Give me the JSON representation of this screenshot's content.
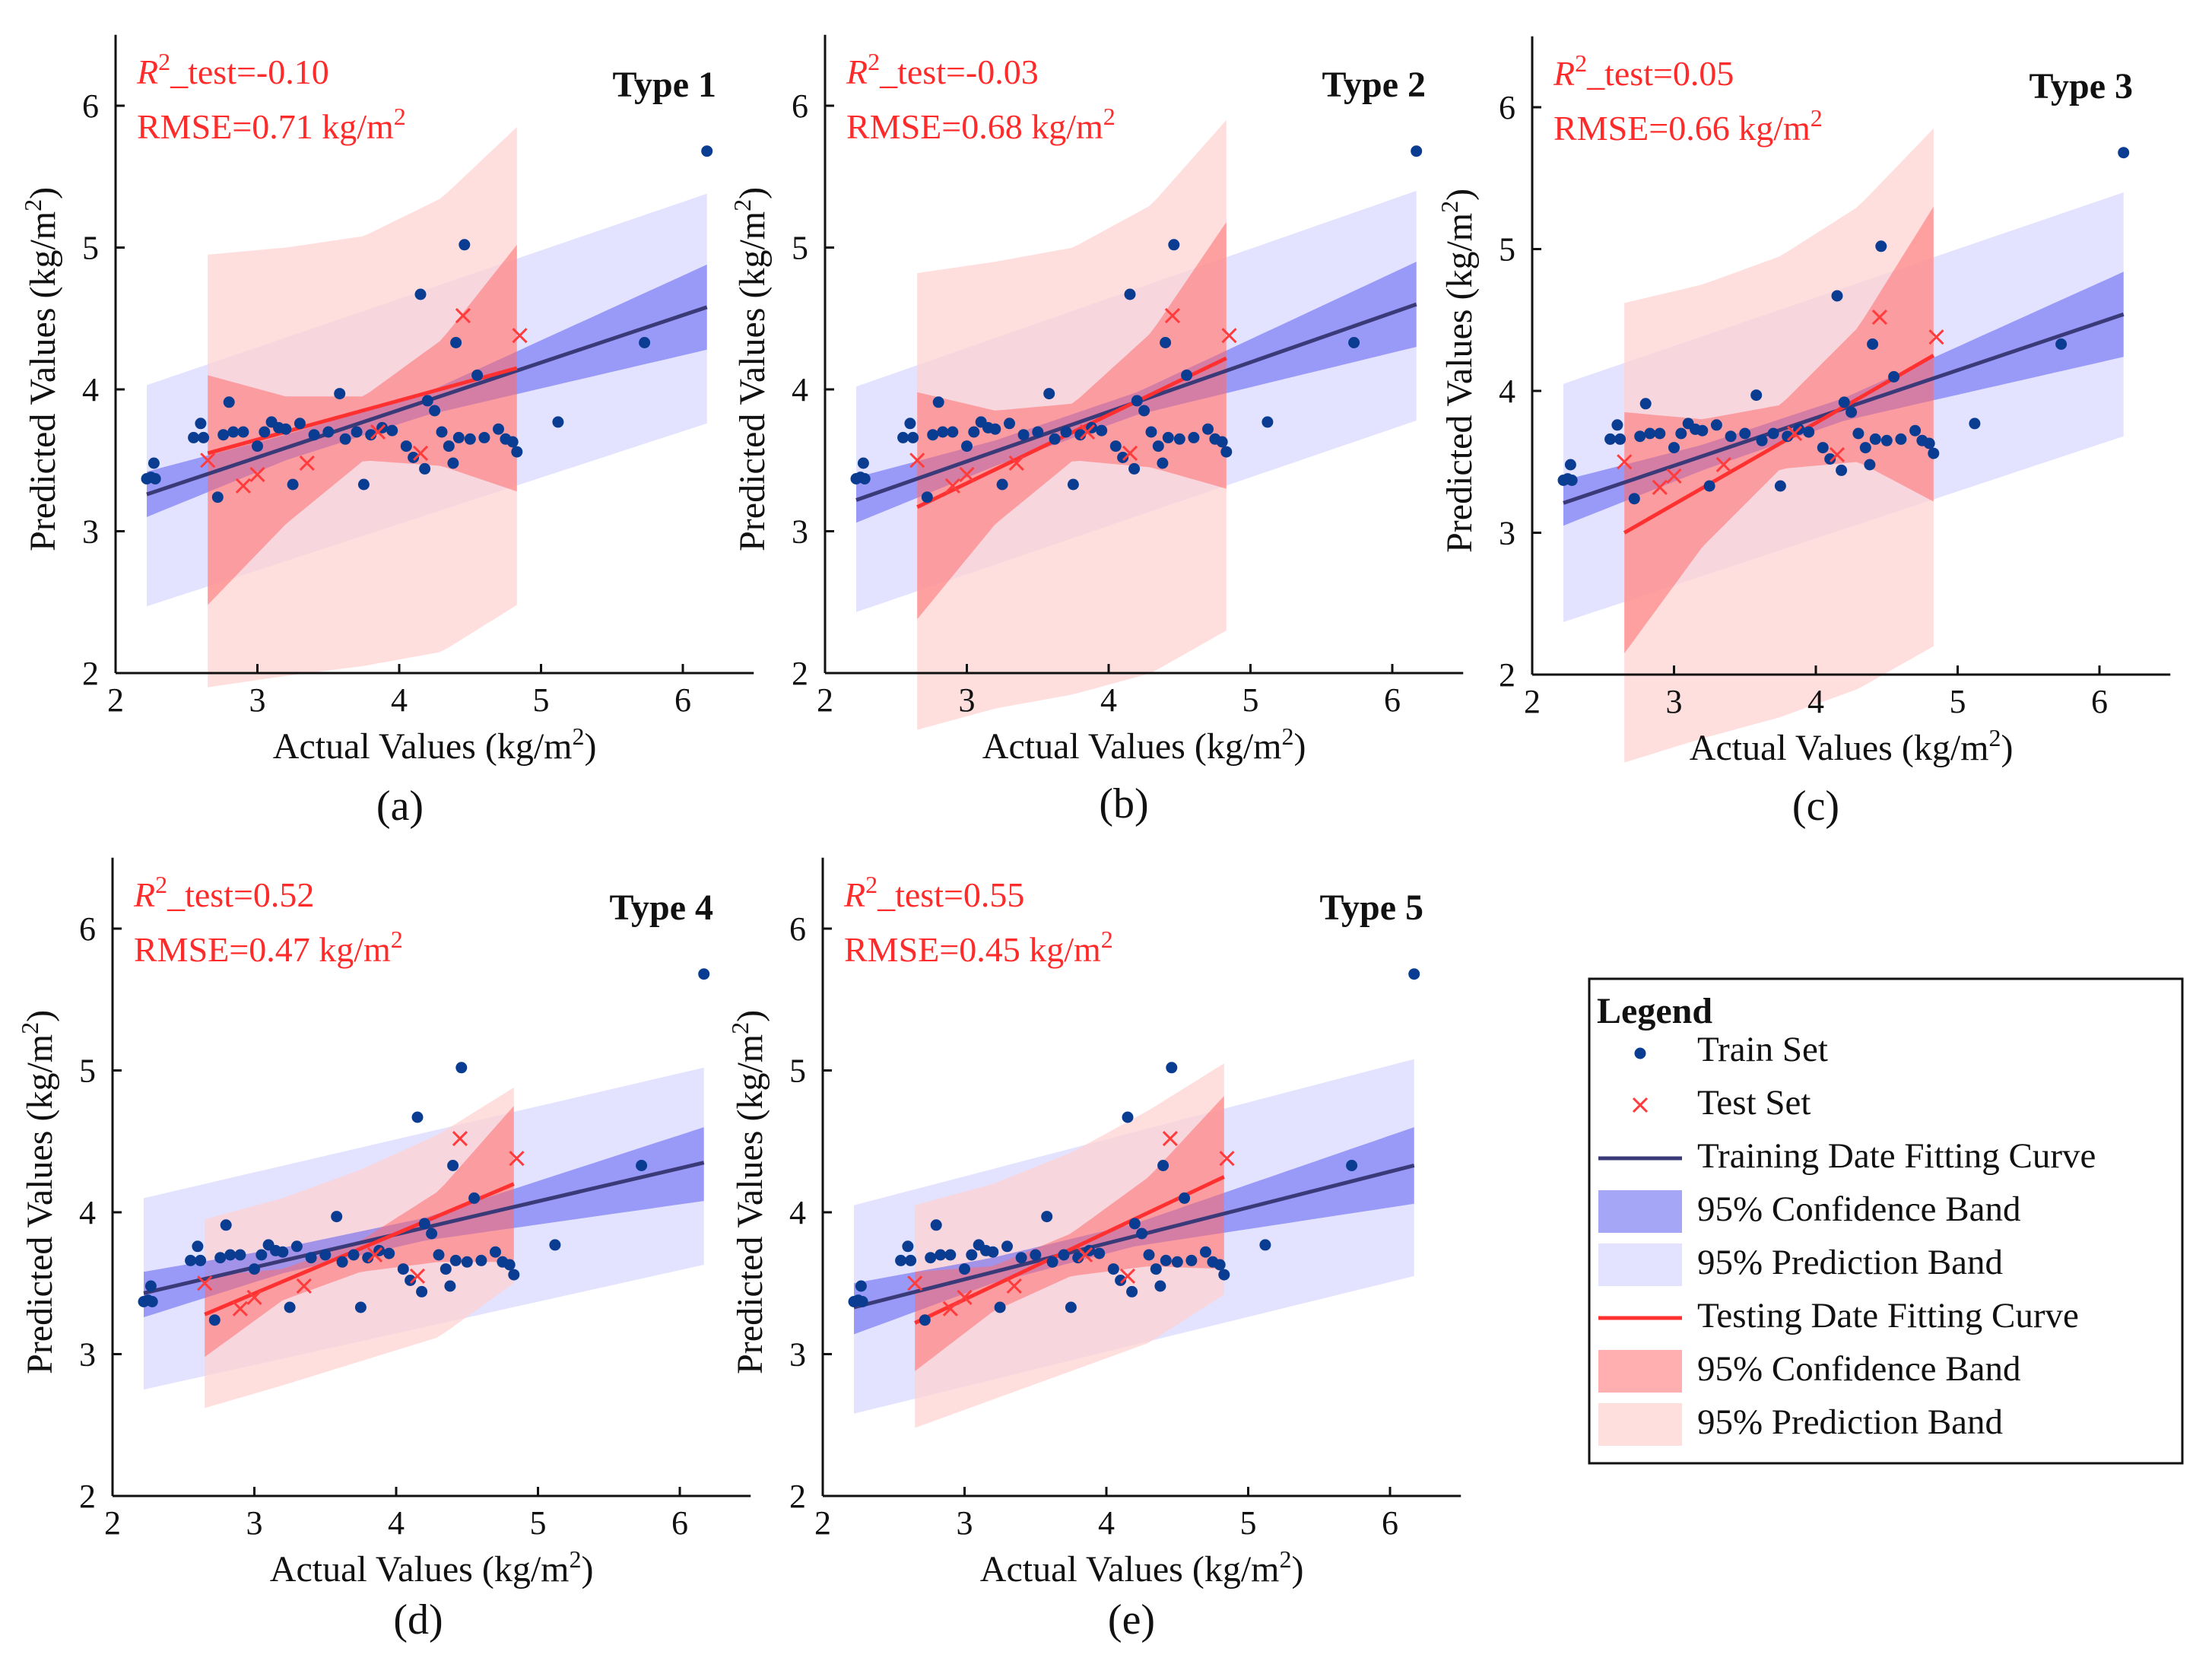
{
  "figure": {
    "background": "#ffffff"
  },
  "colors": {
    "train_point": "#0a3d91",
    "test_point": "#ff3b3b",
    "train_line": "#3a3a78",
    "test_line": "#ff3030",
    "train_conf_band": "#5c5cf0",
    "train_pred_band": "#dcdcff",
    "test_conf_band": "#ff6e6e",
    "test_pred_band": "#ffd0d0",
    "stat_text": "#ff2a2a"
  },
  "legend": {
    "title": "Legend",
    "items": [
      {
        "label": "Train Set",
        "kind": "dot"
      },
      {
        "label": "Test Set",
        "kind": "cross"
      },
      {
        "label": "Training Date Fitting Curve",
        "kind": "line-train"
      },
      {
        "label": "95% Confidence Band",
        "kind": "band-train-conf"
      },
      {
        "label": "95% Prediction Band",
        "kind": "band-train-pred"
      },
      {
        "label": "Testing Date Fitting Curve",
        "kind": "line-test"
      },
      {
        "label": "95% Confidence Band",
        "kind": "band-test-conf"
      },
      {
        "label": "95% Prediction Band",
        "kind": "band-test-pred"
      }
    ]
  },
  "train_points": [
    [
      2.22,
      3.37
    ],
    [
      2.25,
      3.38
    ],
    [
      2.27,
      3.48
    ],
    [
      2.28,
      3.37
    ],
    [
      2.55,
      3.66
    ],
    [
      2.6,
      3.76
    ],
    [
      2.62,
      3.66
    ],
    [
      2.72,
      3.24
    ],
    [
      2.76,
      3.68
    ],
    [
      2.8,
      3.91
    ],
    [
      2.83,
      3.7
    ],
    [
      2.9,
      3.7
    ],
    [
      3.0,
      3.6
    ],
    [
      3.05,
      3.7
    ],
    [
      3.1,
      3.77
    ],
    [
      3.15,
      3.73
    ],
    [
      3.2,
      3.72
    ],
    [
      3.25,
      3.33
    ],
    [
      3.3,
      3.76
    ],
    [
      3.4,
      3.68
    ],
    [
      3.5,
      3.7
    ],
    [
      3.58,
      3.97
    ],
    [
      3.62,
      3.65
    ],
    [
      3.7,
      3.7
    ],
    [
      3.75,
      3.33
    ],
    [
      3.8,
      3.68
    ],
    [
      3.88,
      3.73
    ],
    [
      3.95,
      3.71
    ],
    [
      4.05,
      3.6
    ],
    [
      4.1,
      3.52
    ],
    [
      4.15,
      4.67
    ],
    [
      4.18,
      3.44
    ],
    [
      4.2,
      3.92
    ],
    [
      4.25,
      3.85
    ],
    [
      4.3,
      3.7
    ],
    [
      4.35,
      3.6
    ],
    [
      4.38,
      3.48
    ],
    [
      4.4,
      4.33
    ],
    [
      4.42,
      3.66
    ],
    [
      4.46,
      5.02
    ],
    [
      4.5,
      3.65
    ],
    [
      4.55,
      4.1
    ],
    [
      4.6,
      3.66
    ],
    [
      4.7,
      3.72
    ],
    [
      4.75,
      3.65
    ],
    [
      4.8,
      3.63
    ],
    [
      4.83,
      3.56
    ],
    [
      5.12,
      3.77
    ],
    [
      5.73,
      4.33
    ],
    [
      6.17,
      5.68
    ]
  ],
  "test_points": [
    [
      2.65,
      3.5
    ],
    [
      2.9,
      3.32
    ],
    [
      3.0,
      3.4
    ],
    [
      3.35,
      3.48
    ],
    [
      3.85,
      3.7
    ],
    [
      4.15,
      3.55
    ],
    [
      4.45,
      4.52
    ],
    [
      4.85,
      4.38
    ]
  ],
  "chart_data": [
    {
      "type": "scatter",
      "panel": "(a)",
      "title": "Type 1",
      "r2_text": "_test=-0.10",
      "rmse_text": "RMSE=0.71 kg/m",
      "xlabel": "Actual Values (kg/m",
      "ylabel": "Predicted Values (kg/m",
      "xlim": [
        2,
        6.5
      ],
      "ylim": [
        2,
        6.5
      ],
      "xticks": [
        2,
        3,
        4,
        5,
        6
      ],
      "yticks": [
        2,
        3,
        4,
        5,
        6
      ],
      "train_fit": {
        "x": [
          2.22,
          6.17
        ],
        "y": [
          3.26,
          4.58
        ]
      },
      "train_conf": {
        "x": [
          2.22,
          3.2,
          4.2,
          6.17
        ],
        "upper": [
          3.42,
          3.68,
          3.98,
          4.88
        ],
        "lower": [
          3.1,
          3.5,
          3.82,
          4.28
        ]
      },
      "train_pred": {
        "x": [
          2.22,
          6.17
        ],
        "upper": [
          4.03,
          5.38
        ],
        "lower": [
          2.47,
          3.76
        ]
      },
      "test_fit": {
        "x": [
          2.65,
          4.83
        ],
        "y": [
          3.55,
          4.15
        ]
      },
      "test_conf": {
        "x": [
          2.65,
          3.2,
          3.75,
          4.3,
          4.83
        ],
        "upper": [
          4.1,
          3.95,
          3.95,
          4.35,
          5.02
        ],
        "lower": [
          2.48,
          3.05,
          3.5,
          3.46,
          3.28
        ]
      },
      "test_pred": {
        "x": [
          2.65,
          3.2,
          3.75,
          4.3,
          4.83
        ],
        "upper": [
          4.95,
          5.0,
          5.08,
          5.35,
          5.85
        ],
        "lower": [
          1.9,
          1.98,
          2.05,
          2.15,
          2.48
        ]
      }
    },
    {
      "type": "scatter",
      "panel": "(b)",
      "title": "Type 2",
      "r2_text": "_test=-0.03",
      "rmse_text": "RMSE=0.68 kg/m",
      "xlabel": "Actual Values (kg/m",
      "ylabel": "Predicted Values (kg/m",
      "xlim": [
        2,
        6.5
      ],
      "ylim": [
        2,
        6.5
      ],
      "xticks": [
        2,
        3,
        4,
        5,
        6
      ],
      "yticks": [
        2,
        3,
        4,
        5,
        6
      ],
      "train_fit": {
        "x": [
          2.22,
          6.17
        ],
        "y": [
          3.22,
          4.6
        ]
      },
      "train_conf": {
        "x": [
          2.22,
          3.2,
          4.2,
          6.17
        ],
        "upper": [
          3.38,
          3.64,
          3.98,
          4.9
        ],
        "lower": [
          3.06,
          3.46,
          3.82,
          4.3
        ]
      },
      "train_pred": {
        "x": [
          2.22,
          6.17
        ],
        "upper": [
          4.02,
          5.4
        ],
        "lower": [
          2.43,
          3.78
        ]
      },
      "test_fit": {
        "x": [
          2.65,
          4.83
        ],
        "y": [
          3.17,
          4.22
        ]
      },
      "test_conf": {
        "x": [
          2.65,
          3.2,
          3.75,
          4.3,
          4.83
        ],
        "upper": [
          3.98,
          3.85,
          3.9,
          4.4,
          5.18
        ],
        "lower": [
          2.38,
          3.05,
          3.5,
          3.45,
          3.3
        ]
      },
      "test_pred": {
        "x": [
          2.65,
          3.2,
          3.75,
          4.3,
          4.83
        ],
        "upper": [
          4.82,
          4.9,
          5.0,
          5.3,
          5.9
        ],
        "lower": [
          1.6,
          1.75,
          1.85,
          2.0,
          2.3
        ]
      }
    },
    {
      "type": "scatter",
      "panel": "(c)",
      "title": "Type 3",
      "r2_text": "_test=0.05",
      "rmse_text": "RMSE=0.66 kg/m",
      "xlabel": "Actual Values (kg/m",
      "ylabel": "Predicted Values (kg/m",
      "xlim": [
        2,
        6.5
      ],
      "ylim": [
        2,
        6.5
      ],
      "xticks": [
        2,
        3,
        4,
        5,
        6
      ],
      "yticks": [
        2,
        3,
        4,
        5,
        6
      ],
      "train_fit": {
        "x": [
          2.22,
          6.17
        ],
        "y": [
          3.21,
          4.54
        ]
      },
      "train_conf": {
        "x": [
          2.22,
          3.2,
          4.2,
          6.17
        ],
        "upper": [
          3.37,
          3.62,
          3.95,
          4.84
        ],
        "lower": [
          3.05,
          3.44,
          3.79,
          4.24
        ]
      },
      "train_pred": {
        "x": [
          2.22,
          6.17
        ],
        "upper": [
          4.05,
          5.4
        ],
        "lower": [
          2.37,
          3.68
        ]
      },
      "test_fit": {
        "x": [
          2.65,
          4.83
        ],
        "y": [
          3.0,
          4.25
        ]
      },
      "test_conf": {
        "x": [
          2.65,
          3.2,
          3.75,
          4.3,
          4.83
        ],
        "upper": [
          3.85,
          3.8,
          3.9,
          4.45,
          5.3
        ],
        "lower": [
          2.15,
          2.9,
          3.45,
          3.5,
          3.22
        ]
      },
      "test_pred": {
        "x": [
          2.65,
          3.2,
          3.75,
          4.3,
          4.83
        ],
        "upper": [
          4.62,
          4.75,
          4.95,
          5.3,
          5.85
        ],
        "lower": [
          1.38,
          1.55,
          1.7,
          1.9,
          2.2
        ]
      }
    },
    {
      "type": "scatter",
      "panel": "(d)",
      "title": "Type 4",
      "r2_text": "_test=0.52",
      "rmse_text": "RMSE=0.47 kg/m",
      "xlabel": "Actual Values (kg/m",
      "ylabel": "Predicted Values (kg/m",
      "xlim": [
        2,
        6.5
      ],
      "ylim": [
        2,
        6.5
      ],
      "xticks": [
        2,
        3,
        4,
        5,
        6
      ],
      "yticks": [
        2,
        3,
        4,
        5,
        6
      ],
      "train_fit": {
        "x": [
          2.22,
          6.17
        ],
        "y": [
          3.43,
          4.35
        ]
      },
      "train_conf": {
        "x": [
          2.22,
          3.2,
          4.2,
          6.17
        ],
        "upper": [
          3.58,
          3.75,
          3.96,
          4.6
        ],
        "lower": [
          3.26,
          3.57,
          3.8,
          4.08
        ]
      },
      "train_pred": {
        "x": [
          2.22,
          6.17
        ],
        "upper": [
          4.1,
          5.02
        ],
        "lower": [
          2.75,
          3.63
        ]
      },
      "test_fit": {
        "x": [
          2.65,
          4.83
        ],
        "y": [
          3.28,
          4.2
        ]
      },
      "test_conf": {
        "x": [
          2.65,
          3.2,
          3.75,
          4.3,
          4.83
        ],
        "upper": [
          3.55,
          3.6,
          3.8,
          4.15,
          4.75
        ],
        "lower": [
          2.98,
          3.38,
          3.58,
          3.65,
          3.65
        ]
      },
      "test_pred": {
        "x": [
          2.65,
          3.2,
          3.75,
          4.3,
          4.83
        ],
        "upper": [
          3.95,
          4.1,
          4.3,
          4.55,
          4.88
        ],
        "lower": [
          2.62,
          2.78,
          2.95,
          3.12,
          3.5
        ]
      }
    },
    {
      "type": "scatter",
      "panel": "(e)",
      "title": "Type 5",
      "r2_text": "_test=0.55",
      "rmse_text": "RMSE=0.45 kg/m",
      "xlabel": "Actual Values (kg/m",
      "ylabel": "Predicted Values (kg/m",
      "xlim": [
        2,
        6.5
      ],
      "ylim": [
        2,
        6.5
      ],
      "xticks": [
        2,
        3,
        4,
        5,
        6
      ],
      "yticks": [
        2,
        3,
        4,
        5,
        6
      ],
      "train_fit": {
        "x": [
          2.22,
          6.17
        ],
        "y": [
          3.33,
          4.33
        ]
      },
      "train_conf": {
        "x": [
          2.22,
          3.2,
          4.2,
          6.17
        ],
        "upper": [
          3.5,
          3.68,
          3.92,
          4.6
        ],
        "lower": [
          3.14,
          3.5,
          3.76,
          4.06
        ]
      },
      "train_pred": {
        "x": [
          2.22,
          6.17
        ],
        "upper": [
          4.05,
          5.08
        ],
        "lower": [
          2.58,
          3.55
        ]
      },
      "test_fit": {
        "x": [
          2.65,
          4.83
        ],
        "y": [
          3.22,
          4.25
        ]
      },
      "test_conf": {
        "x": [
          2.65,
          3.2,
          3.75,
          4.3,
          4.83
        ],
        "upper": [
          3.58,
          3.62,
          3.85,
          4.25,
          4.82
        ],
        "lower": [
          2.88,
          3.3,
          3.55,
          3.62,
          3.6
        ]
      },
      "test_pred": {
        "x": [
          2.65,
          3.2,
          3.75,
          4.3,
          4.83
        ],
        "upper": [
          4.05,
          4.2,
          4.42,
          4.72,
          5.05
        ],
        "lower": [
          2.48,
          2.68,
          2.88,
          3.08,
          3.42
        ]
      }
    }
  ]
}
